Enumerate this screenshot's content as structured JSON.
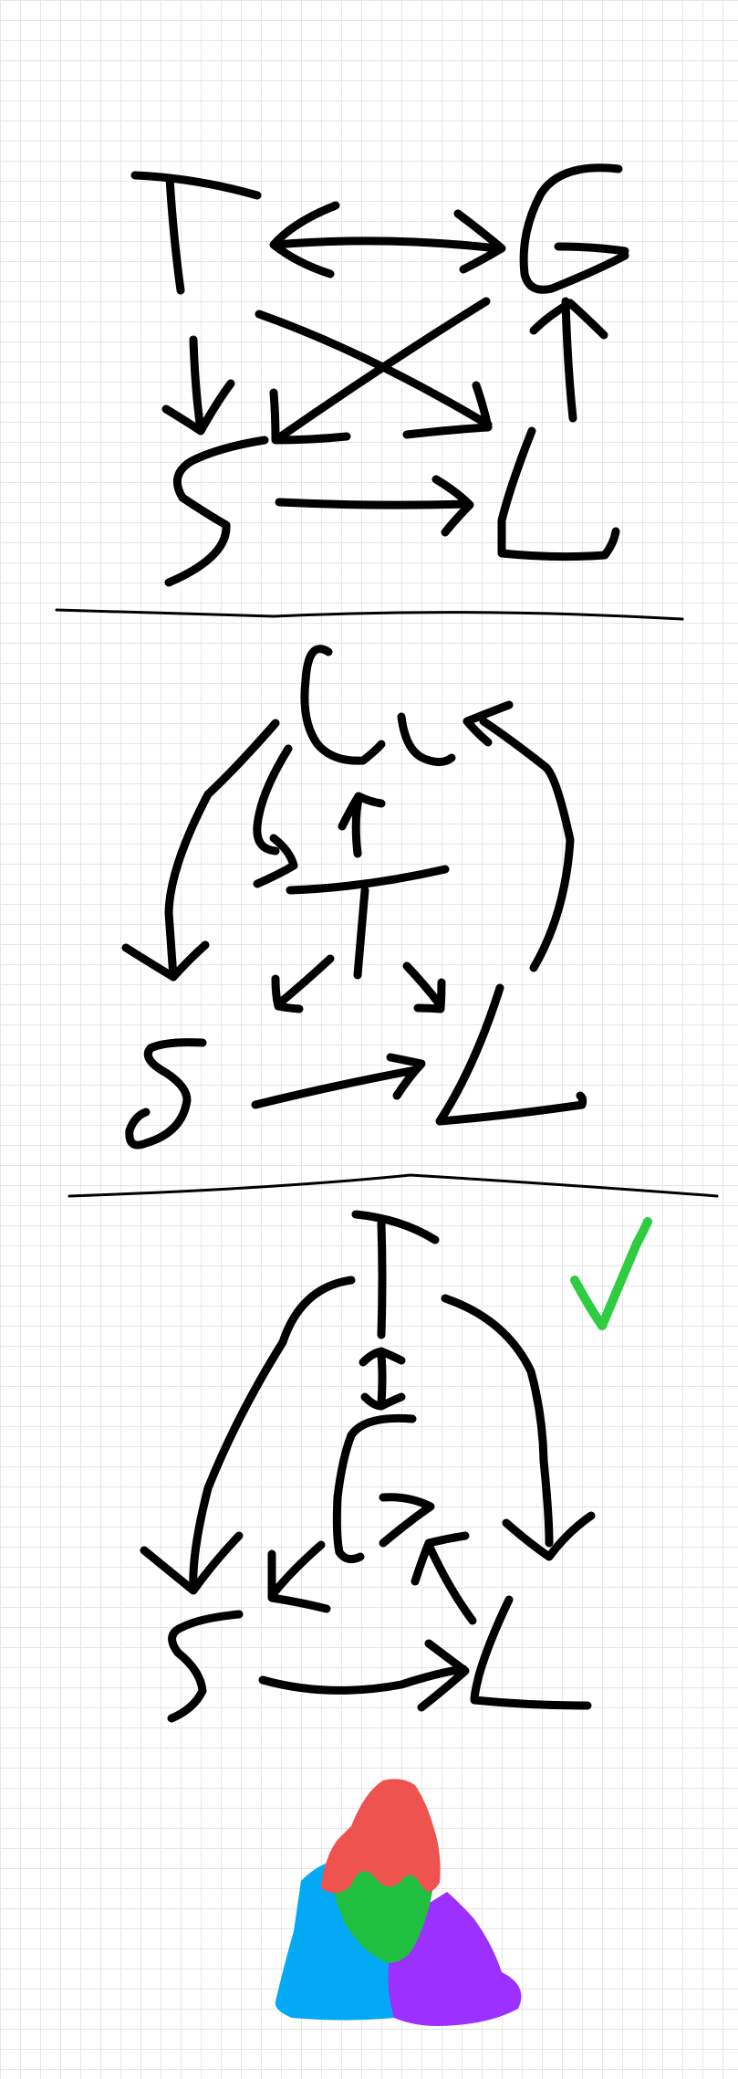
{
  "colors": {
    "ink": "#000000",
    "check": "#2ecc40",
    "grid": "#e6e6e6",
    "triangle_top": "#ef5350",
    "triangle_center": "#1fbf3f",
    "triangle_left": "#03a9f4",
    "triangle_right": "#9b30ff"
  },
  "diagrams": [
    {
      "nodes": {
        "t": "T",
        "g": "G",
        "s": "S",
        "l": "L"
      }
    },
    {
      "nodes": {
        "t": "T",
        "g": "G",
        "s": "S",
        "l": "L"
      }
    },
    {
      "nodes": {
        "t": "T",
        "g": "G",
        "s": "S",
        "l": "L"
      },
      "marked_correct": true,
      "check_icon": "checkmark-icon"
    }
  ],
  "logo_icon": "color-triangle-icon"
}
